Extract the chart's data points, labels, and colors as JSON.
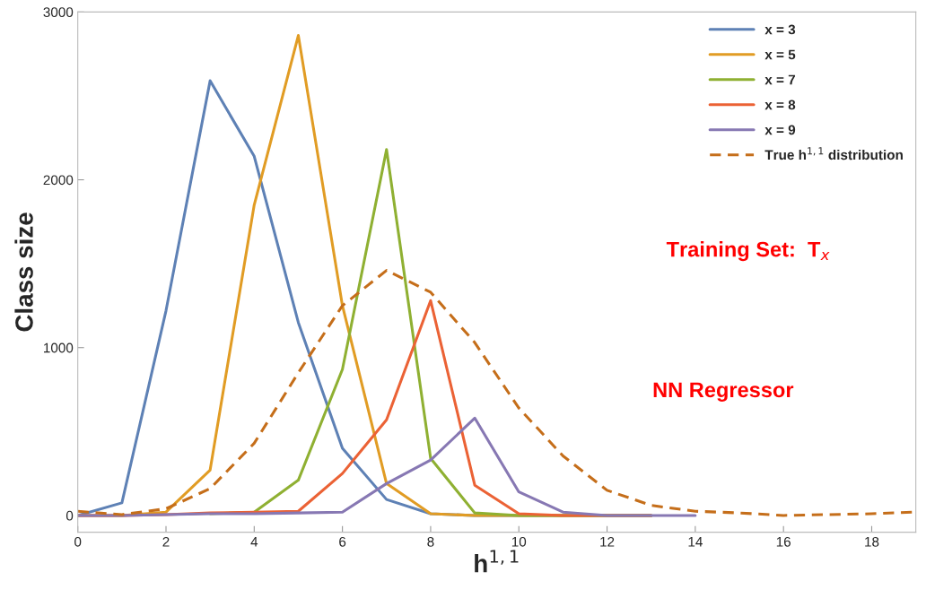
{
  "chart_data": {
    "type": "line",
    "xlabel": "h$^{1,1}$",
    "ylabel": "Class size",
    "x": [
      0,
      1,
      2,
      3,
      4,
      5,
      6,
      7,
      8,
      9,
      10,
      11,
      12,
      13,
      14,
      15,
      16,
      17,
      18,
      19
    ],
    "series": [
      {
        "name": "x = 3",
        "color": "#5e81b5",
        "values": [
          0,
          75,
          1220,
          2590,
          2140,
          1150,
          400,
          95,
          10,
          0,
          0,
          0,
          0,
          0,
          null,
          null,
          null,
          null,
          null,
          null
        ]
      },
      {
        "name": "x = 5",
        "color": "#e19c24",
        "values": [
          0,
          0,
          20,
          270,
          1850,
          2860,
          1250,
          190,
          10,
          0,
          0,
          0,
          0,
          0,
          null,
          null,
          null,
          null,
          null,
          null
        ]
      },
      {
        "name": "x = 7",
        "color": "#8fb032",
        "values": [
          null,
          null,
          null,
          10,
          20,
          210,
          870,
          2180,
          340,
          15,
          0,
          0,
          0,
          0,
          null,
          null,
          null,
          null,
          null,
          null
        ]
      },
      {
        "name": "x = 8",
        "color": "#eb6235",
        "values": [
          0,
          0,
          5,
          15,
          20,
          25,
          250,
          570,
          1280,
          180,
          10,
          0,
          0,
          0,
          null,
          null,
          null,
          null,
          null,
          null
        ]
      },
      {
        "name": "x = 9",
        "color": "#8778b3",
        "values": [
          0,
          0,
          5,
          10,
          10,
          15,
          20,
          190,
          330,
          580,
          140,
          20,
          0,
          0,
          0,
          null,
          null,
          null,
          null,
          null
        ]
      },
      {
        "name": "True h$^{1,1}$ distribution",
        "color": "#c56e1a",
        "line_style": "dashed",
        "values": [
          25,
          5,
          40,
          160,
          430,
          850,
          1250,
          1460,
          1330,
          1030,
          640,
          355,
          150,
          60,
          25,
          15,
          0,
          5,
          10,
          20
        ]
      }
    ],
    "xlim": [
      0,
      19
    ],
    "ylim": [
      -100,
      3000
    ],
    "xticks": [
      0,
      2,
      4,
      6,
      8,
      10,
      12,
      14,
      16,
      18
    ],
    "yticks": [
      0,
      1000,
      2000,
      3000
    ],
    "grid": false,
    "legend": "top right",
    "annotations": [
      "Training Set:  T$_{x}$",
      "NN Regressor"
    ]
  }
}
